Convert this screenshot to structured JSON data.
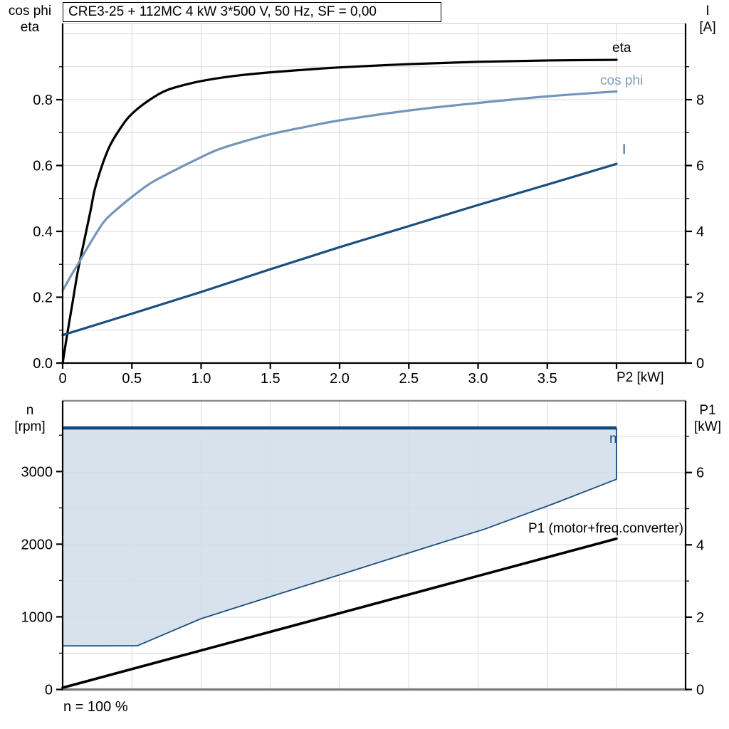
{
  "title_box": {
    "text": "CRE3-25 + 112MC   4 kW   3*500 V, 50 Hz, SF = 0,00"
  },
  "top_chart": {
    "left_axis_title": "cos phi\neta",
    "right_axis_title": "I\n[A]",
    "x_axis_title": "P2 [kW]",
    "curve_labels": {
      "eta": "eta",
      "cos_phi": "cos phi",
      "current": "I"
    }
  },
  "bottom_chart": {
    "left_axis_title": "n\n[rpm]",
    "right_axis_title": "P1\n[kW]",
    "curve_labels": {
      "n": "n",
      "p1": "P1 (motor+freq.converter)"
    },
    "footnote": "n = 100 %"
  },
  "colors": {
    "eta": "#000000",
    "cos_phi": "#7495BB",
    "cos_phi_label": "#7E9EC0",
    "current": "#1B4F80",
    "region_fill": "#D3DEE9",
    "region_outline": "#1B4F80",
    "n_max_line": "#0E4A80",
    "p1_line": "#000000",
    "grid": "#D9D9D9",
    "frame_gray": "#8C8C8C",
    "axis_black": "#000000"
  },
  "chart_data": [
    {
      "type": "line",
      "title": "CRE3-25 + 112MC 4 kW 3*500 V, 50 Hz, SF = 0,00",
      "xlabel": "P2 [kW]",
      "xlim": [
        0,
        4.5
      ],
      "x_ticks": {
        "values": [
          0,
          0.5,
          1,
          1.5,
          2,
          2.5,
          3,
          3.5,
          4
        ],
        "labels": [
          "0",
          "0.5",
          "1.0",
          "1.5",
          "2.0",
          "2.5",
          "3.0",
          "3.5",
          ""
        ]
      },
      "grid": {
        "x_step": 0.5,
        "y_step": 0.1,
        "on": true
      },
      "legend_position": "curve-end-labels",
      "y_left": {
        "label": "cos phi / eta",
        "lim": [
          0,
          1.03
        ],
        "tick_values": [
          0,
          0.2,
          0.4,
          0.6,
          0.8
        ],
        "tick_labels": [
          "0.0",
          "0.2",
          "0.4",
          "0.6",
          "0.8"
        ],
        "minor_step": 0.1
      },
      "y_right": {
        "label": "I [A]",
        "lim": [
          0,
          10.3
        ],
        "tick_values": [
          0,
          2,
          4,
          6,
          8
        ],
        "tick_labels": [
          "0",
          "2",
          "4",
          "6",
          "8"
        ],
        "minor_step": 1
      },
      "series": [
        {
          "name": "eta",
          "axis": "left",
          "smooth": true,
          "points": [
            [
              0,
              0
            ],
            [
              0.03,
              0.08
            ],
            [
              0.07,
              0.18
            ],
            [
              0.11,
              0.28
            ],
            [
              0.15,
              0.36
            ],
            [
              0.2,
              0.46
            ],
            [
              0.24,
              0.54
            ],
            [
              0.33,
              0.65
            ],
            [
              0.42,
              0.715
            ],
            [
              0.5,
              0.757
            ],
            [
              0.63,
              0.8
            ],
            [
              0.76,
              0.83
            ],
            [
              0.95,
              0.852
            ],
            [
              1.12,
              0.865
            ],
            [
              1.3,
              0.875
            ],
            [
              1.5,
              0.883
            ],
            [
              1.75,
              0.891
            ],
            [
              2,
              0.898
            ],
            [
              2.5,
              0.908
            ],
            [
              3,
              0.915
            ],
            [
              3.5,
              0.919
            ],
            [
              4,
              0.921
            ]
          ]
        },
        {
          "name": "cos phi",
          "axis": "left",
          "smooth": true,
          "points": [
            [
              0,
              0.22
            ],
            [
              0.06,
              0.265
            ],
            [
              0.11,
              0.3
            ],
            [
              0.2,
              0.365
            ],
            [
              0.3,
              0.43
            ],
            [
              0.4,
              0.47
            ],
            [
              0.51,
              0.508
            ],
            [
              0.63,
              0.545
            ],
            [
              0.76,
              0.575
            ],
            [
              0.95,
              0.615
            ],
            [
              1.12,
              0.648
            ],
            [
              1.3,
              0.672
            ],
            [
              1.5,
              0.695
            ],
            [
              1.75,
              0.717
            ],
            [
              2,
              0.737
            ],
            [
              2.5,
              0.767
            ],
            [
              3,
              0.79
            ],
            [
              3.5,
              0.81
            ],
            [
              4,
              0.825
            ]
          ]
        },
        {
          "name": "I",
          "axis": "right",
          "smooth": true,
          "points": [
            [
              0,
              0.85
            ],
            [
              0.5,
              1.5
            ],
            [
              1,
              2.16
            ],
            [
              1.5,
              2.85
            ],
            [
              2,
              3.52
            ],
            [
              2.5,
              4.16
            ],
            [
              3,
              4.8
            ],
            [
              3.5,
              5.42
            ],
            [
              4,
              6.05
            ]
          ]
        }
      ]
    },
    {
      "type": "area",
      "title": "Speed range and input power",
      "xlabel": "P2 [kW]",
      "xlim": [
        0,
        4.5
      ],
      "grid": {
        "x_step": 0.5,
        "y_right_step": 1,
        "on": true
      },
      "y_left": {
        "label": "n [rpm]",
        "lim": [
          0,
          4000
        ],
        "tick_values": [
          0,
          1000,
          2000,
          3000
        ],
        "tick_labels": [
          "0",
          "1000",
          "2000",
          "3000"
        ],
        "minor_step": 500
      },
      "y_right": {
        "label": "P1 [kW]",
        "lim": [
          0,
          8
        ],
        "tick_values": [
          0,
          2,
          4,
          6
        ],
        "tick_labels": [
          "0",
          "2",
          "4",
          "6"
        ],
        "minor_step": 1
      },
      "speed_region": {
        "name": "n",
        "n_max": 3600,
        "x_end": 4,
        "lower_boundary": [
          [
            0,
            600
          ],
          [
            0.54,
            602
          ],
          [
            1.0,
            975
          ],
          [
            1.5,
            1278
          ],
          [
            1.81,
            1464
          ],
          [
            2.45,
            1850
          ],
          [
            3.05,
            2209
          ],
          [
            3.55,
            2560
          ],
          [
            4,
            2894
          ]
        ]
      },
      "p1_series": {
        "name": "P1 (motor+freq.converter)",
        "points": [
          [
            0,
            0.05
          ],
          [
            4,
            4.17
          ]
        ]
      },
      "footnote": "n = 100 %"
    }
  ]
}
